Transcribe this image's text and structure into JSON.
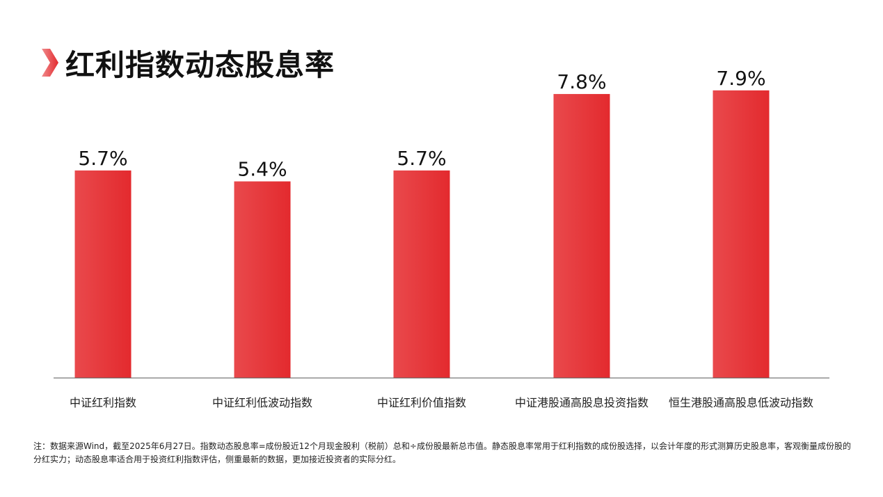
{
  "title": "红利指数动态股息率",
  "colors": {
    "bar": "#e32a2e",
    "bar_light": "#e9494c",
    "axis": "#555555",
    "marker": "#e32a2e"
  },
  "chart_data": {
    "type": "bar",
    "title": "红利指数动态股息率",
    "categories": [
      "中证红利指数",
      "中证红利低波动指数",
      "中证红利价值指数",
      "中证港股通高股息投资指数",
      "恒生港股通高股息低波动指数"
    ],
    "values": [
      5.7,
      5.4,
      5.7,
      7.8,
      7.9
    ],
    "value_labels": [
      "5.7%",
      "5.4%",
      "5.7%",
      "7.8%",
      "7.9%"
    ],
    "unit": "%",
    "xlabel": "",
    "ylabel": "",
    "ylim": [
      0,
      8
    ],
    "grid": false,
    "legend": "none"
  },
  "note": "注：数据来源Wind，截至2025年6月27日。指数动态股息率=成份股近12个月现金股利（税前）总和÷成份股最新总市值。静态股息率常用于红利指数的成份股选择，以会计年度的形式测算历史股息率，客观衡量成份股的分红实力；动态股息率适合用于投资红利指数评估，侧重最新的数据，更加接近投资者的实际分红。"
}
